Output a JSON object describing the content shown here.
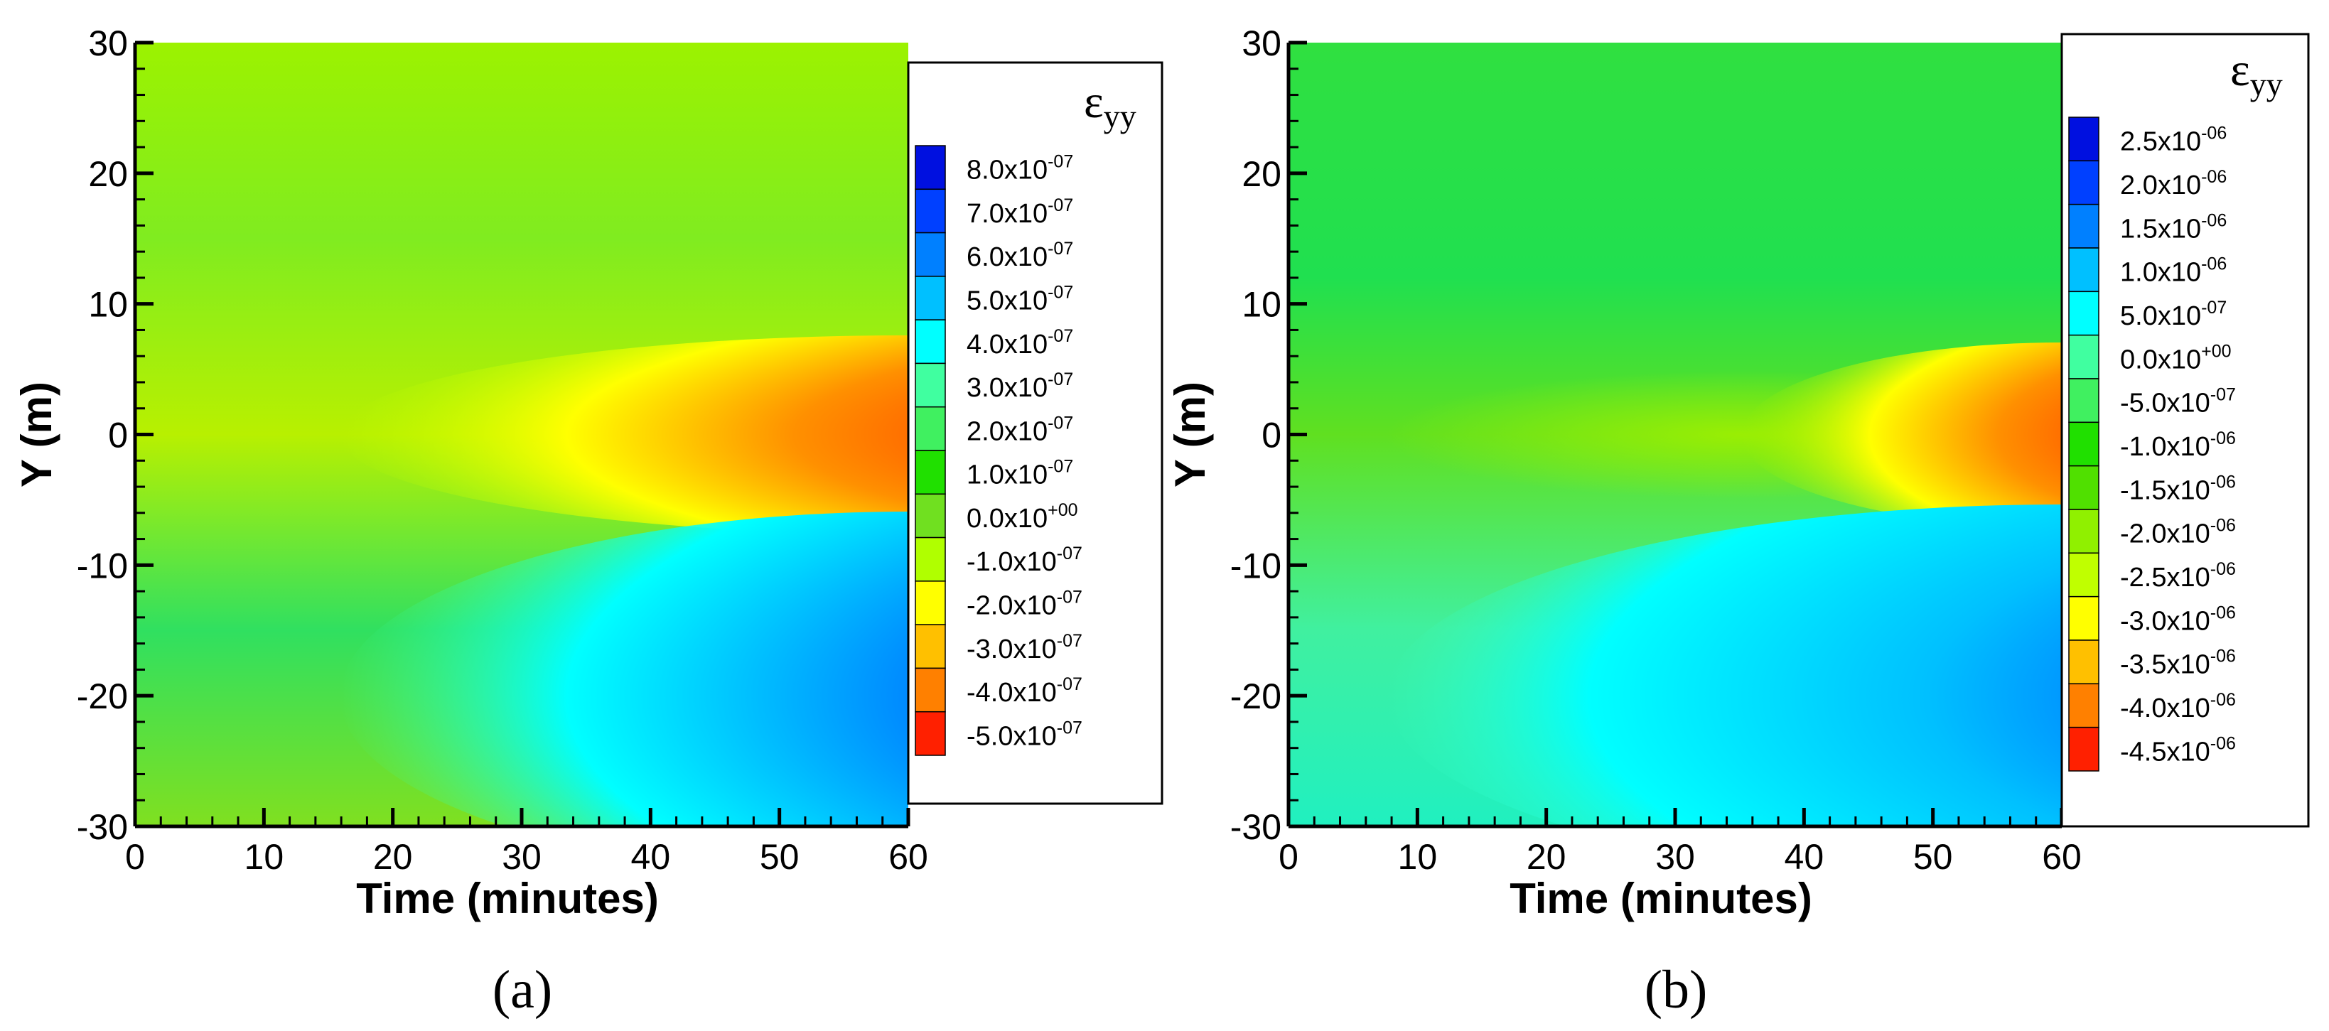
{
  "colors": {
    "red": "#ff0000",
    "orange": "#ff8000",
    "yellow": "#ffff00",
    "yellow_green": "#bfff00",
    "green": "#00e000",
    "light_green": "#40ff80",
    "cyan": "#00ffff",
    "light_blue": "#00a0ff",
    "blue": "#0030ff",
    "dark_blue": "#0010e0"
  },
  "chart_data": [
    {
      "type": "heatmap",
      "panel_label": "(a)",
      "xlabel": "Time (minutes)",
      "ylabel": "Y (m)",
      "xlim": [
        0,
        60
      ],
      "ylim": [
        -30,
        30
      ],
      "x_ticks": [
        "0",
        "10",
        "20",
        "30",
        "40",
        "50",
        "60"
      ],
      "y_ticks": [
        "30",
        "20",
        "10",
        "0",
        "-10",
        "-20",
        "-30"
      ],
      "legend_title": {
        "symbol": "ε",
        "subscript": "yy"
      },
      "legend_position": "right",
      "legend_levels": [
        {
          "mantissa": "8.0x10",
          "exponent": "-07"
        },
        {
          "mantissa": "7.0x10",
          "exponent": "-07"
        },
        {
          "mantissa": "6.0x10",
          "exponent": "-07"
        },
        {
          "mantissa": "5.0x10",
          "exponent": "-07"
        },
        {
          "mantissa": "4.0x10",
          "exponent": "-07"
        },
        {
          "mantissa": "3.0x10",
          "exponent": "-07"
        },
        {
          "mantissa": "2.0x10",
          "exponent": "-07"
        },
        {
          "mantissa": "1.0x10",
          "exponent": "-07"
        },
        {
          "mantissa": "0.0x10",
          "exponent": "+00"
        },
        {
          "mantissa": "-1.0x10",
          "exponent": "-07"
        },
        {
          "mantissa": "-2.0x10",
          "exponent": "-07"
        },
        {
          "mantissa": "-3.0x10",
          "exponent": "-07"
        },
        {
          "mantissa": "-4.0x10",
          "exponent": "-07"
        },
        {
          "mantissa": "-5.0x10",
          "exponent": "-07"
        }
      ],
      "legend_colors": [
        "#0010e0",
        "#0040ff",
        "#0080ff",
        "#00c0ff",
        "#00ffff",
        "#40ffa0",
        "#40f060",
        "#20e000",
        "#70e020",
        "#b0ff00",
        "#ffff00",
        "#ffc000",
        "#ff8000",
        "#ff2000"
      ],
      "field_description": "Near-zero green-yellow background; negative (red) lobe centred at Y=0 growing from ~15 min to 60 min; positive (blue) lobe centred near Y=-20 growing from ~25 min to 60 min.",
      "features": [
        {
          "kind": "negative-lobe",
          "y_center": 0,
          "t_start": 15,
          "peak_t": 60,
          "color": "red"
        },
        {
          "kind": "positive-lobe",
          "y_center": -20,
          "t_start": 25,
          "peak_t": 60,
          "color": "blue"
        }
      ]
    },
    {
      "type": "heatmap",
      "panel_label": "(b)",
      "xlabel": "Time (minutes)",
      "ylabel": "Y (m)",
      "xlim": [
        0,
        60
      ],
      "ylim": [
        -30,
        30
      ],
      "x_ticks": [
        "0",
        "10",
        "20",
        "30",
        "40",
        "50",
        "60"
      ],
      "y_ticks": [
        "30",
        "20",
        "10",
        "0",
        "-10",
        "-20",
        "-30"
      ],
      "legend_title": {
        "symbol": "ε",
        "subscript": "yy"
      },
      "legend_position": "right",
      "legend_levels": [
        {
          "mantissa": "2.5x10",
          "exponent": "-06"
        },
        {
          "mantissa": "2.0x10",
          "exponent": "-06"
        },
        {
          "mantissa": "1.5x10",
          "exponent": "-06"
        },
        {
          "mantissa": "1.0x10",
          "exponent": "-06"
        },
        {
          "mantissa": "5.0x10",
          "exponent": "-07"
        },
        {
          "mantissa": "0.0x10",
          "exponent": "+00"
        },
        {
          "mantissa": "-5.0x10",
          "exponent": "-07"
        },
        {
          "mantissa": "-1.0x10",
          "exponent": "-06"
        },
        {
          "mantissa": "-1.5x10",
          "exponent": "-06"
        },
        {
          "mantissa": "-2.0x10",
          "exponent": "-06"
        },
        {
          "mantissa": "-2.5x10",
          "exponent": "-06"
        },
        {
          "mantissa": "-3.0x10",
          "exponent": "-06"
        },
        {
          "mantissa": "-3.5x10",
          "exponent": "-06"
        },
        {
          "mantissa": "-4.0x10",
          "exponent": "-06"
        },
        {
          "mantissa": "-4.5x10",
          "exponent": "-06"
        }
      ],
      "legend_colors": [
        "#0010e0",
        "#0040ff",
        "#0080ff",
        "#00c0ff",
        "#00ffff",
        "#40ffa0",
        "#40f060",
        "#20e000",
        "#50e000",
        "#90f000",
        "#c0ff00",
        "#ffff00",
        "#ffc000",
        "#ff8000",
        "#ff2000"
      ],
      "field_description": "Green background; faint green-yellow ridge near Y=0 from ~15 min; negative (red) lobe centred at Y=0 from ~35 min to 60 min; positive (blue) lobe centred near Y=-20 from ~20 min to 60 min.",
      "features": [
        {
          "kind": "negative-lobe",
          "y_center": 0,
          "t_start": 35,
          "peak_t": 60,
          "color": "red"
        },
        {
          "kind": "positive-lobe",
          "y_center": -20,
          "t_start": 20,
          "peak_t": 60,
          "color": "blue"
        }
      ]
    }
  ]
}
